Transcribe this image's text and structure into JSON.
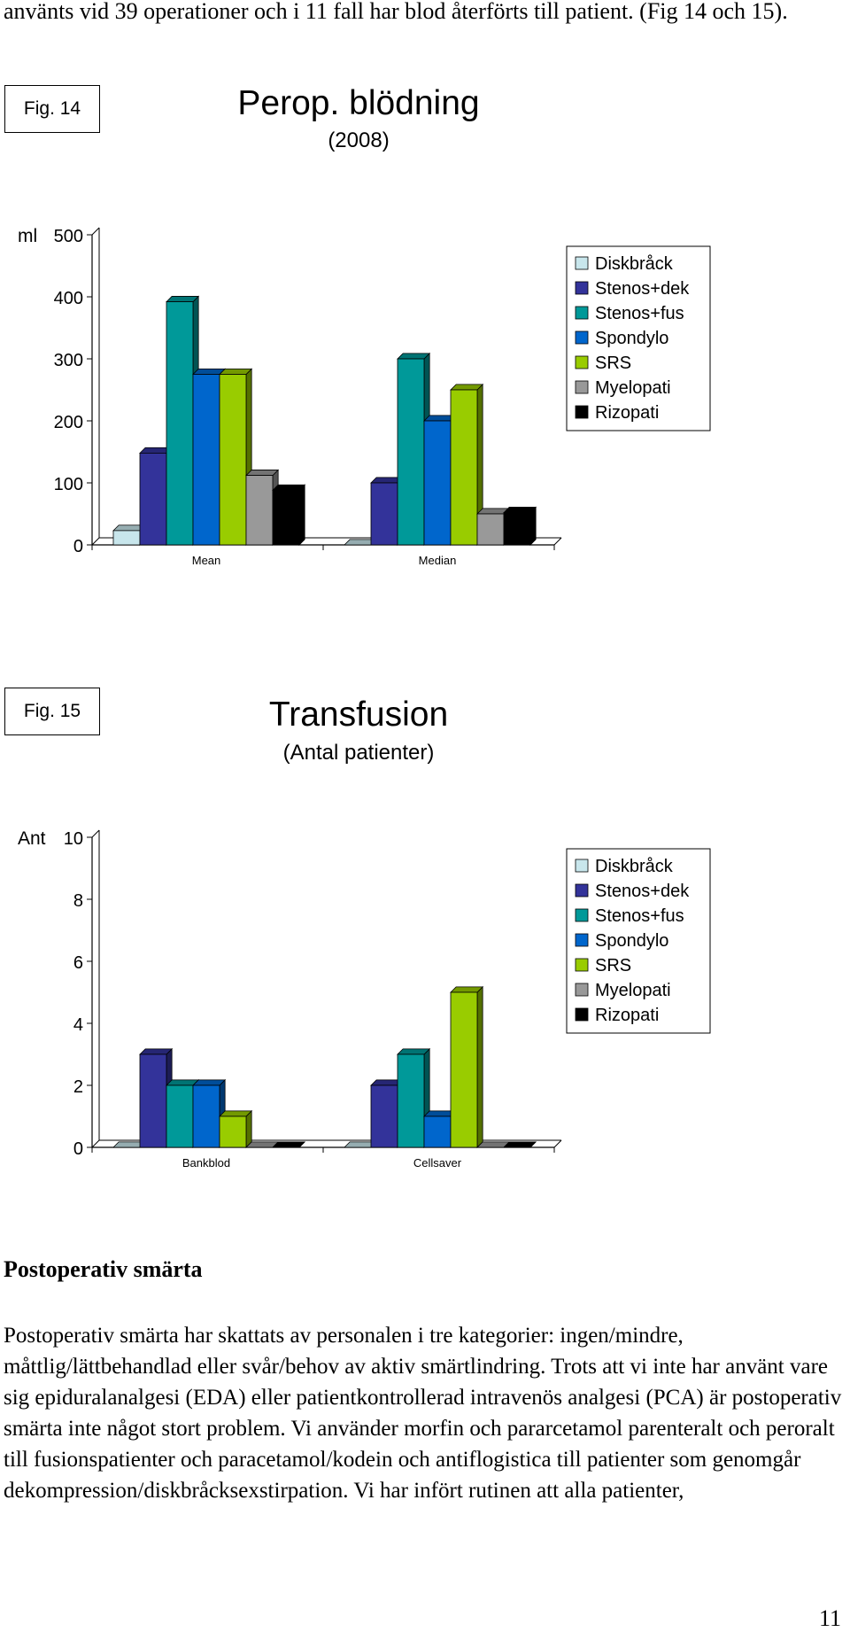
{
  "intro_text": "använts vid 39 operationer och i 11 fall har blod återförts till patient. (Fig 14 och 15).",
  "legend": [
    "Diskbråck",
    "Stenos+dek",
    "Stenos+fus",
    "Spondylo",
    "SRS",
    "Myelopati",
    "Rizopati"
  ],
  "colors": [
    "#c8e6ec",
    "#33339a",
    "#009999",
    "#0066cc",
    "#99cc00",
    "#999999",
    "#000000"
  ],
  "chart_data": [
    {
      "type": "bar",
      "fig_label": "Fig. 14",
      "title": "Perop. blödning",
      "subtitle": "(2008)",
      "ylabel": "ml",
      "categories": [
        "Mean",
        "Median"
      ],
      "ylim": [
        0,
        500
      ],
      "yticks": [
        0,
        100,
        200,
        300,
        400,
        500
      ],
      "series": [
        {
          "name": "Diskbråck",
          "values": [
            23,
            0
          ]
        },
        {
          "name": "Stenos+dek",
          "values": [
            148,
            100
          ]
        },
        {
          "name": "Stenos+fus",
          "values": [
            392,
            300
          ]
        },
        {
          "name": "Spondylo",
          "values": [
            275,
            200
          ]
        },
        {
          "name": "SRS",
          "values": [
            275,
            250
          ]
        },
        {
          "name": "Myelopati",
          "values": [
            112,
            50
          ]
        },
        {
          "name": "Rizopati",
          "values": [
            88,
            52
          ]
        }
      ],
      "legend_position": "right"
    },
    {
      "type": "bar",
      "fig_label": "Fig. 15",
      "title": "Transfusion",
      "subtitle": "(Antal patienter)",
      "ylabel": "Ant",
      "categories": [
        "Bankblod",
        "Cellsaver"
      ],
      "ylim": [
        0,
        10
      ],
      "yticks": [
        0,
        2,
        4,
        6,
        8,
        10
      ],
      "series": [
        {
          "name": "Diskbråck",
          "values": [
            0,
            0
          ]
        },
        {
          "name": "Stenos+dek",
          "values": [
            3,
            2
          ]
        },
        {
          "name": "Stenos+fus",
          "values": [
            2,
            3
          ]
        },
        {
          "name": "Spondylo",
          "values": [
            2,
            1
          ]
        },
        {
          "name": "SRS",
          "values": [
            1,
            5
          ]
        },
        {
          "name": "Myelopati",
          "values": [
            0,
            0
          ]
        },
        {
          "name": "Rizopati",
          "values": [
            0,
            0
          ]
        }
      ],
      "legend_position": "right"
    }
  ],
  "section_title": "Postoperativ smärta",
  "body_text": "Postoperativ smärta har skattats av personalen i tre kategorier: ingen/mindre, måttlig/lättbehandlad eller svår/behov av aktiv smärtlindring. Trots att vi inte har använt vare sig epiduralanalgesi (EDA) eller patientkontrollerad intravenös analgesi (PCA) är postoperativ smärta inte något stort problem. Vi använder morfin och pararcetamol parenteralt och peroralt till fusionspatienter och paracetamol/kodein och antiflogistica till patienter som genomgår dekompression/diskbråcksexstirpation. Vi har infört rutinen att alla patienter,",
  "page_number": "11"
}
